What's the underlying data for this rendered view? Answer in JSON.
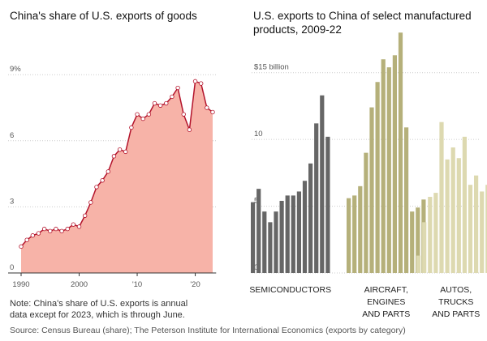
{
  "chart_data": [
    {
      "type": "area",
      "title": "China's share of U.S. exports of goods",
      "x": [
        1990,
        1991,
        1992,
        1993,
        1994,
        1995,
        1996,
        1997,
        1998,
        1999,
        2000,
        2001,
        2002,
        2003,
        2004,
        2005,
        2006,
        2007,
        2008,
        2009,
        2010,
        2011,
        2012,
        2013,
        2014,
        2015,
        2016,
        2017,
        2018,
        2019,
        2020,
        2021,
        2022,
        2023
      ],
      "values": [
        1.2,
        1.5,
        1.7,
        1.8,
        2.0,
        1.9,
        2.0,
        1.9,
        2.0,
        2.2,
        2.1,
        2.6,
        3.2,
        3.9,
        4.2,
        4.6,
        5.3,
        5.6,
        5.5,
        6.6,
        7.2,
        7.0,
        7.2,
        7.7,
        7.6,
        7.7,
        8.0,
        8.4,
        7.2,
        6.5,
        8.7,
        8.6,
        7.5,
        7.3
      ],
      "color": "#b3132b",
      "fill": "#f7b3a8",
      "xlim": [
        1989.5,
        2023.6
      ],
      "xticks": [
        1990,
        2000,
        {
          "value": 2010,
          "label": "'10"
        },
        {
          "value": 2020,
          "label": "'20"
        }
      ],
      "ylim": [
        0,
        10
      ],
      "yticks": [
        0,
        3,
        6,
        {
          "value": 9,
          "label": "9%"
        }
      ],
      "grid": true
    },
    {
      "type": "grouped-bar",
      "title": [
        "U.S. exports to China of select manufactured",
        "products, 2009-22"
      ],
      "series": [
        {
          "label": [
            "SEMICONDUCTORS"
          ],
          "color": "#666666",
          "values": [
            5.3,
            6.3,
            4.6,
            3.8,
            4.6,
            5.4,
            5.8,
            5.8,
            6.1,
            6.9,
            8.2,
            11.2,
            13.3,
            10.2
          ]
        },
        {
          "label": [
            "AIRCRAFT,",
            "ENGINES",
            "AND PARTS"
          ],
          "color": "#b5b07a",
          "values": [
            5.6,
            5.8,
            6.5,
            9.0,
            12.4,
            14.3,
            16.0,
            15.4,
            16.3,
            18.0,
            10.9,
            4.6,
            4.9,
            5.5
          ]
        },
        {
          "label": [
            "AUTOS,",
            "TRUCKS",
            "AND PARTS"
          ],
          "color": "#ddd9b0",
          "values": [
            1.3,
            3.8,
            5.7,
            6.0,
            11.3,
            8.5,
            9.4,
            8.6,
            10.2,
            6.6,
            7.3,
            6.1,
            6.6,
            5.6
          ]
        }
      ],
      "ylim": [
        0,
        18.5
      ],
      "yticks": [
        0,
        5,
        10,
        {
          "value": 15,
          "label": "$15 billion"
        }
      ],
      "grid": true
    }
  ],
  "note": [
    "Note: China's share of U.S. exports is annual",
    "data except for 2023, which is through June."
  ],
  "source": "Source: Census Bureau (share); The Peterson Institute for International Economics (exports by category)"
}
